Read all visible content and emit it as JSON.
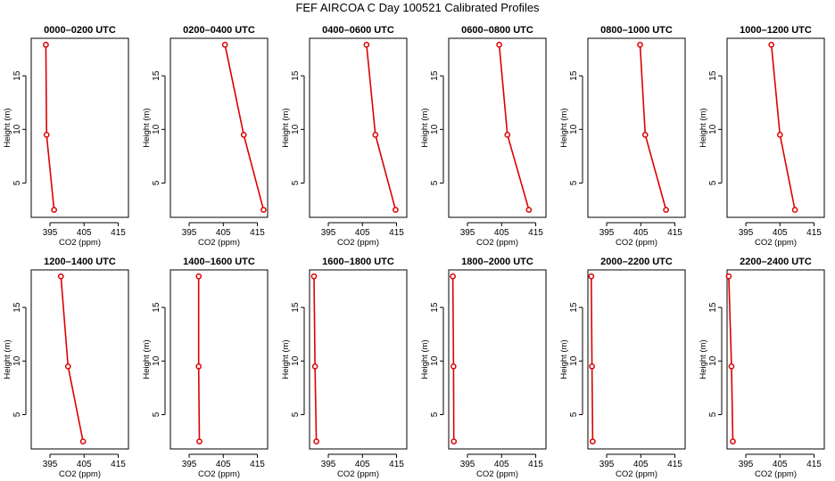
{
  "figure": {
    "title": "FEF AIRCOA C  Day 100521  Calibrated Profiles"
  },
  "chart_data": [
    {
      "type": "line",
      "title": "0000–0200 UTC",
      "xlabel": "CO2 (ppm)",
      "ylabel": "Height (m)",
      "xlim": [
        389.5,
        418
      ],
      "ylim": [
        1.8,
        18.5
      ],
      "xticks": [
        395,
        405,
        415
      ],
      "yticks": [
        5,
        10,
        15
      ],
      "series": [
        {
          "color": "#dd0000",
          "points": [
            {
              "x": 393.8,
              "y": 17.9
            },
            {
              "x": 394.0,
              "y": 9.5
            },
            {
              "x": 396.2,
              "y": 2.5
            }
          ]
        }
      ]
    },
    {
      "type": "line",
      "title": "0200–0400 UTC",
      "xlabel": "CO2 (ppm)",
      "ylabel": "Height (m)",
      "xlim": [
        389.5,
        418
      ],
      "ylim": [
        1.8,
        18.5
      ],
      "xticks": [
        395,
        405,
        415
      ],
      "yticks": [
        5,
        10,
        15
      ],
      "series": [
        {
          "color": "#dd0000",
          "points": [
            {
              "x": 405.5,
              "y": 17.9
            },
            {
              "x": 411.0,
              "y": 9.5
            },
            {
              "x": 416.8,
              "y": 2.5
            }
          ]
        }
      ]
    },
    {
      "type": "line",
      "title": "0400–0600 UTC",
      "xlabel": "CO2 (ppm)",
      "ylabel": "Height (m)",
      "xlim": [
        389.5,
        418
      ],
      "ylim": [
        1.8,
        18.5
      ],
      "xticks": [
        395,
        405,
        415
      ],
      "yticks": [
        5,
        10,
        15
      ],
      "series": [
        {
          "color": "#dd0000",
          "points": [
            {
              "x": 406.2,
              "y": 17.9
            },
            {
              "x": 408.8,
              "y": 9.5
            },
            {
              "x": 414.7,
              "y": 2.5
            }
          ]
        }
      ]
    },
    {
      "type": "line",
      "title": "0600–0800 UTC",
      "xlabel": "CO2 (ppm)",
      "ylabel": "Height (m)",
      "xlim": [
        389.5,
        418
      ],
      "ylim": [
        1.8,
        18.5
      ],
      "xticks": [
        395,
        405,
        415
      ],
      "yticks": [
        5,
        10,
        15
      ],
      "series": [
        {
          "color": "#dd0000",
          "points": [
            {
              "x": 404.3,
              "y": 17.9
            },
            {
              "x": 406.7,
              "y": 9.5
            },
            {
              "x": 413.0,
              "y": 2.5
            }
          ]
        }
      ]
    },
    {
      "type": "line",
      "title": "0800–1000 UTC",
      "xlabel": "CO2 (ppm)",
      "ylabel": "Height (m)",
      "xlim": [
        389.5,
        418
      ],
      "ylim": [
        1.8,
        18.5
      ],
      "xticks": [
        395,
        405,
        415
      ],
      "yticks": [
        5,
        10,
        15
      ],
      "series": [
        {
          "color": "#dd0000",
          "points": [
            {
              "x": 404.8,
              "y": 17.9
            },
            {
              "x": 406.3,
              "y": 9.5
            },
            {
              "x": 412.4,
              "y": 2.5
            }
          ]
        }
      ]
    },
    {
      "type": "line",
      "title": "1000–1200 UTC",
      "xlabel": "CO2 (ppm)",
      "ylabel": "Height (m)",
      "xlim": [
        389.5,
        418
      ],
      "ylim": [
        1.8,
        18.5
      ],
      "xticks": [
        395,
        405,
        415
      ],
      "yticks": [
        5,
        10,
        15
      ],
      "series": [
        {
          "color": "#dd0000",
          "points": [
            {
              "x": 402.5,
              "y": 17.9
            },
            {
              "x": 405.0,
              "y": 9.5
            },
            {
              "x": 409.4,
              "y": 2.5
            }
          ]
        }
      ]
    },
    {
      "type": "line",
      "title": "1200–1400 UTC",
      "xlabel": "CO2 (ppm)",
      "ylabel": "Height (m)",
      "xlim": [
        389.5,
        418
      ],
      "ylim": [
        1.8,
        18.5
      ],
      "xticks": [
        395,
        405,
        415
      ],
      "yticks": [
        5,
        10,
        15
      ],
      "series": [
        {
          "color": "#dd0000",
          "points": [
            {
              "x": 398.2,
              "y": 17.9
            },
            {
              "x": 400.3,
              "y": 9.5
            },
            {
              "x": 404.7,
              "y": 2.5
            }
          ]
        }
      ]
    },
    {
      "type": "line",
      "title": "1400–1600 UTC",
      "xlabel": "CO2 (ppm)",
      "ylabel": "Height (m)",
      "xlim": [
        389.5,
        418
      ],
      "ylim": [
        1.8,
        18.5
      ],
      "xticks": [
        395,
        405,
        415
      ],
      "yticks": [
        5,
        10,
        15
      ],
      "series": [
        {
          "color": "#dd0000",
          "points": [
            {
              "x": 397.8,
              "y": 17.9
            },
            {
              "x": 397.8,
              "y": 9.5
            },
            {
              "x": 398.0,
              "y": 2.5
            }
          ]
        }
      ]
    },
    {
      "type": "line",
      "title": "1600–1800 UTC",
      "xlabel": "CO2 (ppm)",
      "ylabel": "Height (m)",
      "xlim": [
        389.5,
        418
      ],
      "ylim": [
        1.8,
        18.5
      ],
      "xticks": [
        395,
        405,
        415
      ],
      "yticks": [
        5,
        10,
        15
      ],
      "series": [
        {
          "color": "#dd0000",
          "points": [
            {
              "x": 390.8,
              "y": 17.9
            },
            {
              "x": 391.1,
              "y": 9.5
            },
            {
              "x": 391.5,
              "y": 2.5
            }
          ]
        }
      ]
    },
    {
      "type": "line",
      "title": "1800–2000 UTC",
      "xlabel": "CO2 (ppm)",
      "ylabel": "Height (m)",
      "xlim": [
        389.5,
        418
      ],
      "ylim": [
        1.8,
        18.5
      ],
      "xticks": [
        395,
        405,
        415
      ],
      "yticks": [
        5,
        10,
        15
      ],
      "series": [
        {
          "color": "#dd0000",
          "points": [
            {
              "x": 390.7,
              "y": 17.9
            },
            {
              "x": 390.9,
              "y": 9.5
            },
            {
              "x": 391.0,
              "y": 2.5
            }
          ]
        }
      ]
    },
    {
      "type": "line",
      "title": "2000–2200 UTC",
      "xlabel": "CO2 (ppm)",
      "ylabel": "Height (m)",
      "xlim": [
        389.5,
        418
      ],
      "ylim": [
        1.8,
        18.5
      ],
      "xticks": [
        395,
        405,
        415
      ],
      "yticks": [
        5,
        10,
        15
      ],
      "series": [
        {
          "color": "#dd0000",
          "points": [
            {
              "x": 390.5,
              "y": 17.9
            },
            {
              "x": 390.7,
              "y": 9.5
            },
            {
              "x": 390.9,
              "y": 2.5
            }
          ]
        }
      ]
    },
    {
      "type": "line",
      "title": "2200–2400 UTC",
      "xlabel": "CO2 (ppm)",
      "ylabel": "Height (m)",
      "xlim": [
        389.5,
        418
      ],
      "ylim": [
        1.8,
        18.5
      ],
      "xticks": [
        395,
        405,
        415
      ],
      "yticks": [
        5,
        10,
        15
      ],
      "series": [
        {
          "color": "#dd0000",
          "points": [
            {
              "x": 390.0,
              "y": 17.9
            },
            {
              "x": 390.8,
              "y": 9.5
            },
            {
              "x": 391.2,
              "y": 2.5
            }
          ]
        }
      ]
    }
  ]
}
